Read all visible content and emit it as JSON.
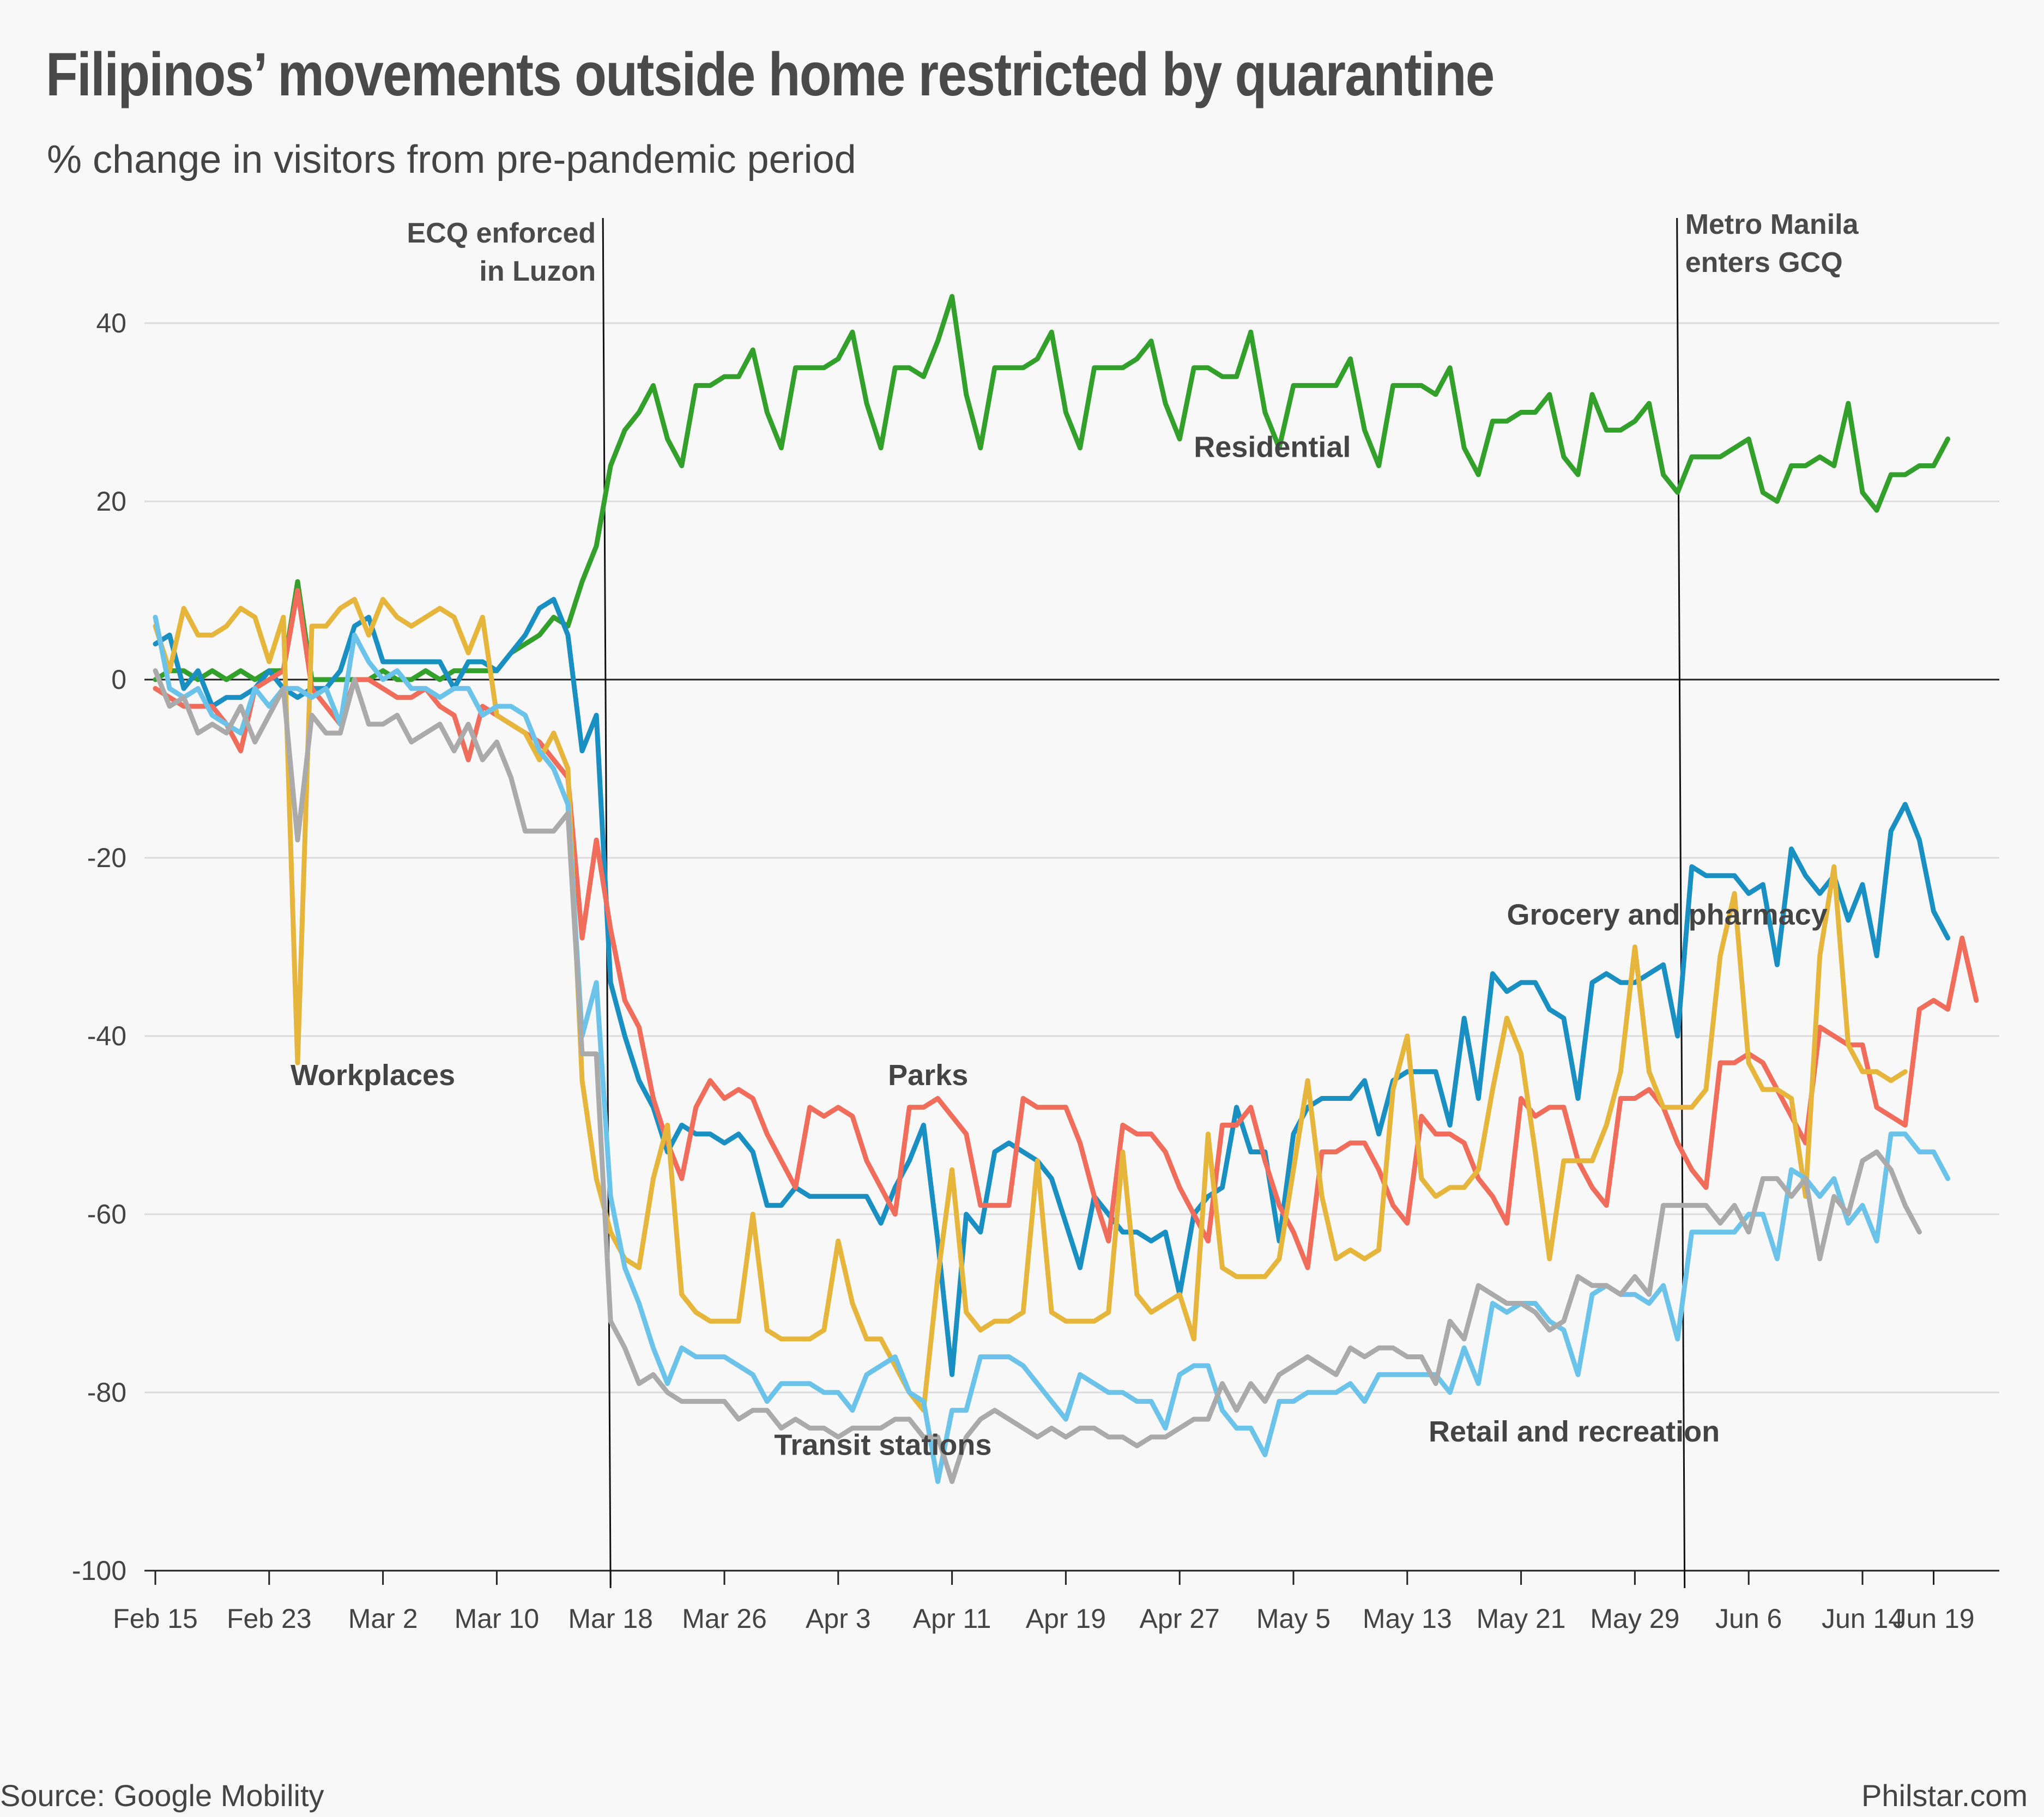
{
  "chart_data": {
    "type": "line",
    "title": "Filipinos’ movements outside home restricted by quarantine",
    "subtitle": "% change in visitors from pre-pandemic period",
    "source": "Source: Google Mobility",
    "credit": "Philstar.com",
    "xlabel": "",
    "ylabel": "% change in visitors from pre-pandemic period",
    "ylim": [
      -100,
      40
    ],
    "yticks": [
      "40",
      "20",
      "0",
      "-20",
      "-40",
      "-60",
      "-80",
      "-100"
    ],
    "ytick_values": [
      40,
      20,
      0,
      -20,
      -40,
      -60,
      -80,
      -100
    ],
    "x_start_label": "Feb 15",
    "num_days": 126,
    "xticks": [
      {
        "label": "Feb 15",
        "day": 0
      },
      {
        "label": "Feb 23",
        "day": 8
      },
      {
        "label": "Mar 2",
        "day": 16
      },
      {
        "label": "Mar 10",
        "day": 24
      },
      {
        "label": "Mar 18",
        "day": 32
      },
      {
        "label": "Mar 26",
        "day": 40
      },
      {
        "label": "Apr 3",
        "day": 48
      },
      {
        "label": "Apr 11",
        "day": 56
      },
      {
        "label": "Apr 19",
        "day": 64
      },
      {
        "label": "Apr 27",
        "day": 72
      },
      {
        "label": "May 5",
        "day": 80
      },
      {
        "label": "May 13",
        "day": 88
      },
      {
        "label": "May 21",
        "day": 96
      },
      {
        "label": "May 29",
        "day": 104
      },
      {
        "label": "Jun 6",
        "day": 112
      },
      {
        "label": "Jun 14",
        "day": 120
      },
      {
        "label": "Jun 19",
        "day": 125
      }
    ],
    "annotations": [
      {
        "lines": [
          "ECQ enforced",
          "in Luzon"
        ],
        "day": 31.5
      },
      {
        "lines": [
          "Metro Manila",
          "enters GCQ"
        ],
        "day": 107
      }
    ],
    "series": [
      {
        "name": "Residential",
        "color": "#33a02c",
        "values": [
          0,
          1,
          1,
          0,
          1,
          0,
          1,
          0,
          1,
          1,
          11,
          0,
          0,
          0,
          0,
          0,
          1,
          0,
          0,
          1,
          0,
          1,
          1,
          1,
          1,
          3,
          4,
          5,
          7,
          6,
          11,
          15,
          24,
          28,
          30,
          33,
          27,
          24,
          33,
          33,
          34,
          34,
          37,
          30,
          26,
          35,
          35,
          35,
          36,
          39,
          31,
          26,
          35,
          35,
          34,
          38,
          43,
          32,
          26,
          35,
          35,
          35,
          36,
          39,
          30,
          26,
          35,
          35,
          35,
          36,
          38,
          31,
          27,
          35,
          35,
          34,
          34,
          39,
          30,
          26,
          33,
          33,
          33,
          33,
          36,
          28,
          24,
          33,
          33,
          33,
          32,
          35,
          26,
          23,
          29,
          29,
          30,
          30,
          32,
          25,
          23,
          32,
          28,
          28,
          29,
          31,
          23,
          21,
          25,
          25,
          25,
          26,
          27,
          21,
          20,
          24,
          24,
          25,
          24,
          31,
          21,
          19,
          23,
          23,
          24,
          24,
          27
        ]
      },
      {
        "name": "Grocery and pharmacy",
        "color": "#1a8fc2",
        "values": [
          4,
          5,
          -1,
          1,
          -3,
          -2,
          -2,
          -1,
          1,
          -1,
          -2,
          -1,
          -1,
          1,
          6,
          7,
          2,
          2,
          2,
          2,
          2,
          -1,
          2,
          2,
          1,
          3,
          5,
          8,
          9,
          5,
          -8,
          -4,
          -34,
          -40,
          -45,
          -48,
          -53,
          -50,
          -51,
          -51,
          -52,
          -51,
          -53,
          -59,
          -59,
          -57,
          -58,
          -58,
          -58,
          -58,
          -58,
          -61,
          -57,
          -54,
          -50,
          -63,
          -78,
          -60,
          -62,
          -53,
          -52,
          -53,
          -54,
          -56,
          -61,
          -66,
          -58,
          -60,
          -62,
          -62,
          -63,
          -62,
          -69,
          -60,
          -58,
          -57,
          -48,
          -53,
          -53,
          -63,
          -51,
          -48,
          -47,
          -47,
          -47,
          -45,
          -51,
          -45,
          -44,
          -44,
          -44,
          -50,
          -38,
          -47,
          -33,
          -35,
          -34,
          -34,
          -37,
          -38,
          -47,
          -34,
          -33,
          -34,
          -34,
          -33,
          -32,
          -40,
          -21,
          -22,
          -22,
          -22,
          -24,
          -23,
          -32,
          -19,
          -22,
          -24,
          -22,
          -27,
          -23,
          -31,
          -17,
          -14,
          -18,
          -26,
          -29
        ]
      },
      {
        "name": "Parks",
        "color": "#ef6d5a",
        "values": [
          -1,
          -2,
          -3,
          -3,
          -3,
          -5,
          -8,
          -1,
          0,
          1,
          10,
          -1,
          -3,
          -5,
          0,
          0,
          -1,
          -2,
          -2,
          -1,
          -3,
          -4,
          -9,
          -3,
          -4,
          -5,
          -6,
          -7,
          -9,
          -11,
          -29,
          -18,
          -28,
          -36,
          -39,
          -47,
          -52,
          -56,
          -48,
          -45,
          -47,
          -46,
          -47,
          -51,
          -54,
          -57,
          -48,
          -49,
          -48,
          -49,
          -54,
          -57,
          -60,
          -48,
          -48,
          -47,
          -49,
          -51,
          -59,
          -59,
          -59,
          -47,
          -48,
          -48,
          -48,
          -52,
          -58,
          -63,
          -50,
          -51,
          -51,
          -53,
          -57,
          -60,
          -63,
          -50,
          -50,
          -48,
          -54,
          -59,
          -62,
          -66,
          -53,
          -53,
          -52,
          -52,
          -55,
          -59,
          -61,
          -49,
          -51,
          -51,
          -52,
          -56,
          -58,
          -61,
          -47,
          -49,
          -48,
          -48,
          -54,
          -57,
          -59,
          -47,
          -47,
          -46,
          -48,
          -52,
          -55,
          -57,
          -43,
          -43,
          -42,
          -43,
          -46,
          -49,
          -52,
          -39,
          -40,
          -41,
          -41,
          -48,
          -49,
          -50,
          -37,
          -36,
          -37,
          -29,
          -36
        ]
      },
      {
        "name": "Workplaces",
        "color": "#e5b53c",
        "values": [
          6,
          1,
          8,
          5,
          5,
          6,
          8,
          7,
          2,
          7,
          -43,
          6,
          6,
          8,
          9,
          5,
          9,
          7,
          6,
          7,
          8,
          7,
          3,
          7,
          -4,
          -5,
          -6,
          -9,
          -6,
          -10,
          -45,
          -56,
          -62,
          -65,
          -66,
          -56,
          -50,
          -69,
          -71,
          -72,
          -72,
          -72,
          -60,
          -73,
          -74,
          -74,
          -74,
          -73,
          -63,
          -70,
          -74,
          -74,
          -77,
          -80,
          -82,
          -67,
          -55,
          -71,
          -73,
          -72,
          -72,
          -71,
          -54,
          -71,
          -72,
          -72,
          -72,
          -71,
          -53,
          -69,
          -71,
          -70,
          -69,
          -74,
          -51,
          -66,
          -67,
          -67,
          -67,
          -65,
          -55,
          -45,
          -58,
          -65,
          -64,
          -65,
          -64,
          -46,
          -40,
          -56,
          -58,
          -57,
          -57,
          -55,
          -46,
          -38,
          -42,
          -53,
          -65,
          -54,
          -54,
          -54,
          -50,
          -44,
          -30,
          -44,
          -48,
          -48,
          -48,
          -46,
          -31,
          -24,
          -43,
          -46,
          -46,
          -47,
          -58,
          -31,
          -21,
          -41,
          -44,
          -44,
          -45,
          -44
        ]
      },
      {
        "name": "Retail and recreation",
        "color": "#6cc3ea",
        "values": [
          7,
          -1,
          -2,
          -1,
          -4,
          -5,
          -6,
          -1,
          -3,
          -1,
          -1,
          -2,
          -1,
          -5,
          5,
          2,
          0,
          1,
          -1,
          -1,
          -2,
          -1,
          -1,
          -4,
          -3,
          -3,
          -4,
          -8,
          -10,
          -14,
          -40,
          -34,
          -58,
          -66,
          -70,
          -75,
          -79,
          -75,
          -76,
          -76,
          -76,
          -77,
          -78,
          -81,
          -79,
          -79,
          -79,
          -80,
          -80,
          -82,
          -78,
          -77,
          -76,
          -80,
          -81,
          -90,
          -82,
          -82,
          -76,
          -76,
          -76,
          -77,
          -79,
          -81,
          -83,
          -78,
          -79,
          -80,
          -80,
          -81,
          -81,
          -84,
          -78,
          -77,
          -77,
          -82,
          -84,
          -84,
          -87,
          -81,
          -81,
          -80,
          -80,
          -80,
          -79,
          -81,
          -78,
          -78,
          -78,
          -78,
          -78,
          -80,
          -75,
          -79,
          -70,
          -71,
          -70,
          -70,
          -72,
          -73,
          -78,
          -69,
          -68,
          -69,
          -69,
          -70,
          -68,
          -74,
          -62,
          -62,
          -62,
          -62,
          -60,
          -60,
          -65,
          -55,
          -56,
          -58,
          -56,
          -61,
          -59,
          -63,
          -51,
          -51,
          -53,
          -53,
          -56
        ]
      },
      {
        "name": "Transit stations",
        "color": "#aaaaaa",
        "values": [
          1,
          -3,
          -2,
          -6,
          -5,
          -6,
          -3,
          -7,
          -4,
          -1,
          -18,
          -4,
          -6,
          -6,
          0,
          -5,
          -5,
          -4,
          -7,
          -6,
          -5,
          -8,
          -5,
          -9,
          -7,
          -11,
          -17,
          -17,
          -17,
          -15,
          -42,
          -42,
          -72,
          -75,
          -79,
          -78,
          -80,
          -81,
          -81,
          -81,
          -81,
          -83,
          -82,
          -82,
          -84,
          -83,
          -84,
          -84,
          -85,
          -84,
          -84,
          -84,
          -83,
          -83,
          -85,
          -85,
          -90,
          -85,
          -83,
          -82,
          -83,
          -84,
          -85,
          -84,
          -85,
          -84,
          -84,
          -85,
          -85,
          -86,
          -85,
          -85,
          -84,
          -83,
          -83,
          -79,
          -82,
          -79,
          -81,
          -78,
          -77,
          -76,
          -77,
          -78,
          -75,
          -76,
          -75,
          -75,
          -76,
          -76,
          -79,
          -72,
          -74,
          -68,
          -69,
          -70,
          -70,
          -71,
          -73,
          -72,
          -67,
          -68,
          -68,
          -69,
          -67,
          -69,
          -59,
          -59,
          -59,
          -59,
          -61,
          -59,
          -62,
          -56,
          -56,
          -58,
          -56,
          -65,
          -58,
          -60,
          -54,
          -53,
          -55,
          -59,
          -62
        ]
      }
    ],
    "series_labels": [
      {
        "series": "Residential",
        "text": "Residential",
        "day": 73,
        "value": 25
      },
      {
        "series": "Grocery and pharmacy",
        "text": "Grocery and pharmacy",
        "day": 95,
        "value": -27.5
      },
      {
        "series": "Parks",
        "text": "Parks",
        "day": 51.5,
        "value": -45.5
      },
      {
        "series": "Workplaces",
        "text": "Workplaces",
        "day": 9.5,
        "value": -45.5
      },
      {
        "series": "Retail and recreation",
        "text": "Retail and recreation",
        "day": 89.5,
        "value": -85.5
      },
      {
        "series": "Transit stations",
        "text": "Transit stations",
        "day": 43.5,
        "value": -87
      }
    ]
  }
}
